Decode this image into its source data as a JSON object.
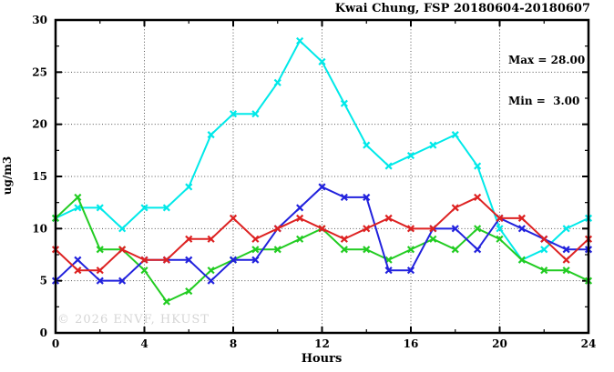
{
  "title": "Kwai Chung, FSP 20180604-20180607",
  "stats": {
    "max_label": "Max = 28.00",
    "min_label": "Min =  3.00"
  },
  "watermark": "© 2026 ENVF, HKUST",
  "chart_data": {
    "type": "line",
    "title": "Kwai Chung, FSP 20180604-20180607",
    "xlabel": "Hours",
    "ylabel": "ug/m3",
    "xlim": [
      0,
      24
    ],
    "ylim": [
      0,
      30
    ],
    "x_ticks": [
      0,
      4,
      8,
      12,
      16,
      20,
      24
    ],
    "x_minor_ticks": [
      2,
      6,
      10,
      14,
      18,
      22
    ],
    "y_ticks": [
      0,
      5,
      10,
      15,
      20,
      25,
      30
    ],
    "y_minor_ticks": [
      2.5,
      7.5,
      12.5,
      17.5,
      22.5,
      27.5
    ],
    "x_grid": [
      4,
      8,
      12,
      16,
      20
    ],
    "y_grid": [
      5,
      10,
      15,
      20,
      25
    ],
    "grid_style": "dotted",
    "legend_position": "none",
    "annotations": [
      "Max = 28.00",
      "Min =  3.00"
    ],
    "x": [
      0,
      1,
      2,
      3,
      4,
      5,
      6,
      7,
      8,
      9,
      10,
      11,
      12,
      13,
      14,
      15,
      16,
      17,
      18,
      19,
      20,
      21,
      22,
      23,
      24
    ],
    "series": [
      {
        "name": "cyan",
        "color": "#00E9E9",
        "values": [
          11,
          12,
          12,
          10,
          12,
          12,
          14,
          19,
          21,
          21,
          24,
          28,
          26,
          22,
          18,
          16,
          17,
          18,
          19,
          16,
          10,
          7,
          8,
          10,
          11
        ]
      },
      {
        "name": "green",
        "color": "#22CC22",
        "values": [
          11,
          13,
          8,
          8,
          6,
          3,
          4,
          6,
          7,
          8,
          8,
          9,
          10,
          8,
          8,
          7,
          8,
          9,
          8,
          10,
          9,
          7,
          6,
          6,
          5
        ]
      },
      {
        "name": "blue",
        "color": "#2222DD",
        "values": [
          5,
          7,
          5,
          5,
          7,
          7,
          7,
          5,
          7,
          7,
          10,
          12,
          14,
          13,
          13,
          6,
          6,
          10,
          10,
          8,
          11,
          10,
          9,
          8,
          8
        ]
      },
      {
        "name": "red",
        "color": "#DD2222",
        "values": [
          8,
          6,
          6,
          8,
          7,
          7,
          9,
          9,
          11,
          9,
          10,
          11,
          10,
          9,
          10,
          11,
          10,
          10,
          12,
          13,
          11,
          11,
          9,
          7,
          9
        ]
      }
    ]
  }
}
